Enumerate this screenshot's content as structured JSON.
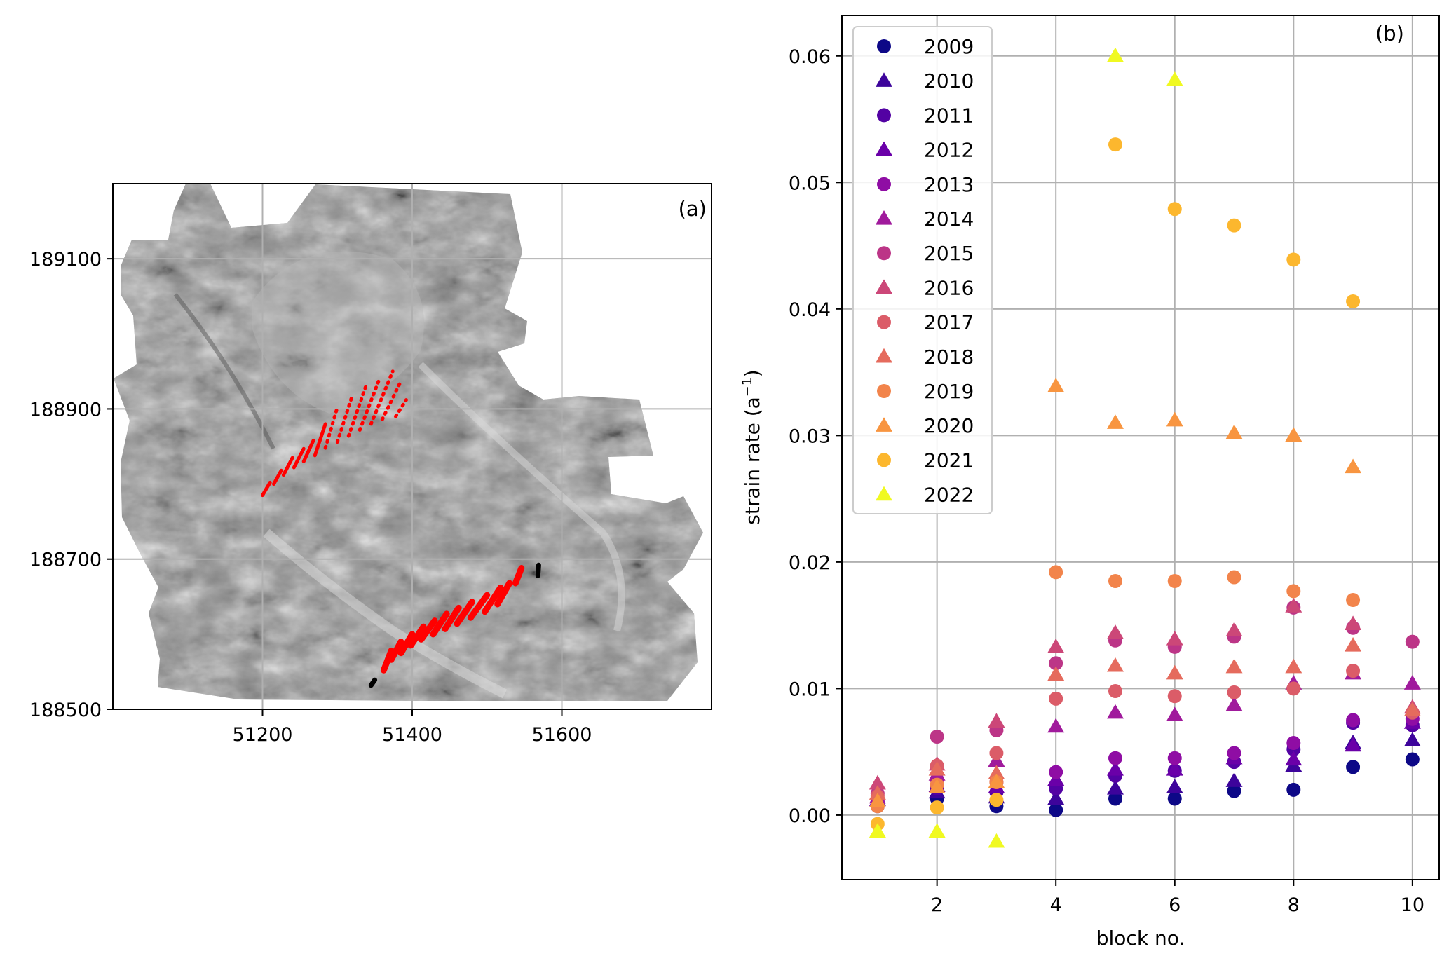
{
  "chart_data": [
    {
      "type": "scatter",
      "panel_label": "(a)",
      "xticks": [
        "51200",
        "51400",
        "51600"
      ],
      "yticks": [
        "188500",
        "188700",
        "188900",
        "189100"
      ],
      "xlim": [
        51000,
        51800
      ],
      "ylim": [
        188500,
        189200
      ],
      "grid": true,
      "background": "grayscale hillshade relief image",
      "profiles_red": [
        {
          "x0": 51200,
          "y0": 188785,
          "x1": 51210,
          "y1": 188802
        },
        {
          "x0": 51215,
          "y0": 188800,
          "x1": 51225,
          "y1": 188818
        },
        {
          "x0": 51228,
          "y0": 188812,
          "x1": 51240,
          "y1": 188835
        },
        {
          "x0": 51242,
          "y0": 188822,
          "x1": 51255,
          "y1": 188847
        },
        {
          "x0": 51255,
          "y0": 188830,
          "x1": 51268,
          "y1": 188858
        },
        {
          "x0": 51270,
          "y0": 188838,
          "x1": 51284,
          "y1": 188880
        },
        {
          "x0": 51284,
          "y0": 188848,
          "x1": 51300,
          "y1": 188902
        },
        {
          "x0": 51300,
          "y0": 188856,
          "x1": 51320,
          "y1": 188918
        },
        {
          "x0": 51315,
          "y0": 188864,
          "x1": 51338,
          "y1": 188930
        },
        {
          "x0": 51330,
          "y0": 188872,
          "x1": 51357,
          "y1": 188942
        },
        {
          "x0": 51345,
          "y0": 188880,
          "x1": 51374,
          "y1": 188950
        },
        {
          "x0": 51360,
          "y0": 188886,
          "x1": 51384,
          "y1": 188935
        },
        {
          "x0": 51378,
          "y0": 188890,
          "x1": 51392,
          "y1": 188912
        },
        {
          "x0": 51362,
          "y0": 188552,
          "x1": 51372,
          "y1": 188578
        },
        {
          "x0": 51372,
          "y0": 188566,
          "x1": 51385,
          "y1": 188590
        },
        {
          "x0": 51385,
          "y0": 188575,
          "x1": 51400,
          "y1": 188600
        },
        {
          "x0": 51398,
          "y0": 188585,
          "x1": 51415,
          "y1": 188610
        },
        {
          "x0": 51412,
          "y0": 188593,
          "x1": 51430,
          "y1": 188618
        },
        {
          "x0": 51428,
          "y0": 188600,
          "x1": 51446,
          "y1": 188627
        },
        {
          "x0": 51444,
          "y0": 188607,
          "x1": 51462,
          "y1": 188635
        },
        {
          "x0": 51460,
          "y0": 188614,
          "x1": 51480,
          "y1": 188643
        },
        {
          "x0": 51478,
          "y0": 188622,
          "x1": 51500,
          "y1": 188652
        },
        {
          "x0": 51497,
          "y0": 188630,
          "x1": 51518,
          "y1": 188662
        },
        {
          "x0": 51514,
          "y0": 188640,
          "x1": 51530,
          "y1": 188668
        },
        {
          "x0": 51538,
          "y0": 188668,
          "x1": 51546,
          "y1": 188688
        }
      ],
      "profiles_black": [
        {
          "x0": 51345,
          "y0": 188532,
          "x1": 51350,
          "y1": 188539
        },
        {
          "x0": 51568,
          "y0": 188678,
          "x1": 51569,
          "y1": 188692
        }
      ]
    },
    {
      "type": "scatter",
      "panel_label": "(b)",
      "xlabel": "block no.",
      "ylabel": "strain rate (a⁻¹)",
      "xlim": [
        0.4,
        10.45
      ],
      "ylim": [
        -0.0051,
        0.0632
      ],
      "xticks": [
        2,
        4,
        6,
        8,
        10
      ],
      "yticks": [
        0.0,
        0.01,
        0.02,
        0.03,
        0.04,
        0.05,
        0.06
      ],
      "ytick_labels": [
        "0.00",
        "0.01",
        "0.02",
        "0.03",
        "0.04",
        "0.05",
        "0.06"
      ],
      "grid": true,
      "legend_position": "upper left",
      "colormap": "plasma",
      "series": [
        {
          "name": "2009",
          "marker": "circle",
          "color": "#0d0887",
          "x": [
            1,
            2,
            3,
            4,
            5,
            6,
            7,
            8,
            9,
            10
          ],
          "values": [
            0.0007,
            0.0013,
            0.0007,
            0.0004,
            0.0013,
            0.0013,
            0.0019,
            0.002,
            0.0038,
            0.0044
          ]
        },
        {
          "name": "2010",
          "marker": "triangle",
          "color": "#3d049b",
          "x": [
            1,
            2,
            3,
            4,
            5,
            6,
            7,
            8,
            9,
            10
          ],
          "values": [
            0.0011,
            0.0018,
            0.0014,
            0.0013,
            0.0021,
            0.0022,
            0.0027,
            0.0039,
            0.0057,
            0.0059
          ]
        },
        {
          "name": "2011",
          "marker": "circle",
          "color": "#5302a3",
          "x": [
            1,
            2,
            3,
            4,
            5,
            6,
            7,
            8,
            9,
            10
          ],
          "values": [
            0.0011,
            0.0021,
            0.0018,
            0.0021,
            0.0031,
            0.0035,
            0.0042,
            0.0052,
            0.0073,
            0.0071
          ]
        },
        {
          "name": "2012",
          "marker": "triangle",
          "color": "#6a00a8",
          "x": [
            1,
            2,
            3,
            4,
            5,
            6,
            7,
            8,
            9,
            10
          ],
          "values": [
            0.0012,
            0.0023,
            0.0022,
            0.0028,
            0.0036,
            0.0036,
            0.0045,
            0.0044,
            0.0055,
            0.0073
          ]
        },
        {
          "name": "2013",
          "marker": "circle",
          "color": "#8f0da4",
          "x": [
            1,
            2,
            3,
            4,
            5,
            6,
            7,
            8,
            9,
            10
          ],
          "values": [
            0.0013,
            0.0028,
            0.0026,
            0.0034,
            0.0045,
            0.0045,
            0.0049,
            0.0057,
            0.0075,
            0.0076
          ]
        },
        {
          "name": "2014",
          "marker": "triangle",
          "color": "#a01a9c",
          "x": [
            1,
            2,
            3,
            4,
            5,
            6,
            7,
            8,
            9,
            10
          ],
          "values": [
            0.0014,
            0.0032,
            0.0043,
            0.007,
            0.0081,
            0.0079,
            0.0087,
            0.0104,
            0.0112,
            0.0104
          ]
        },
        {
          "name": "2015",
          "marker": "circle",
          "color": "#bc3587",
          "x": [
            1,
            2,
            3,
            4,
            5,
            6,
            7,
            8,
            9,
            10
          ],
          "values": [
            0.0017,
            0.0062,
            0.0067,
            0.012,
            0.0138,
            0.0133,
            0.0141,
            0.0164,
            0.0148,
            0.0137
          ]
        },
        {
          "name": "2016",
          "marker": "triangle",
          "color": "#cc4778",
          "x": [
            1,
            2,
            3,
            4,
            5,
            6,
            7,
            8,
            9,
            10
          ],
          "values": [
            0.0025,
            0.004,
            0.0074,
            0.0133,
            0.0144,
            0.0139,
            0.0146,
            0.0165,
            0.0151,
            0.0085
          ]
        },
        {
          "name": "2017",
          "marker": "circle",
          "color": "#db5c68",
          "x": [
            1,
            2,
            3,
            4,
            5,
            6,
            7,
            8,
            9,
            10
          ],
          "values": [
            0.0015,
            0.0039,
            0.0049,
            0.0092,
            0.0098,
            0.0094,
            0.0097,
            0.01,
            0.0114,
            0.0081
          ]
        },
        {
          "name": "2018",
          "marker": "triangle",
          "color": "#e56b5d",
          "x": [
            1,
            2,
            3,
            4,
            5,
            6,
            7,
            8,
            9,
            10
          ],
          "values": [
            0.0017,
            0.0036,
            0.0033,
            0.0111,
            0.0118,
            0.0112,
            0.0117,
            0.0117,
            0.0134,
            0.0083
          ]
        },
        {
          "name": "2019",
          "marker": "circle",
          "color": "#f2844b",
          "x": [
            1,
            2,
            3,
            4,
            5,
            6,
            7,
            8,
            9
          ],
          "values": [
            0.0007,
            0.0024,
            0.0026,
            0.0192,
            0.0185,
            0.0185,
            0.0188,
            0.0177,
            0.017
          ]
        },
        {
          "name": "2020",
          "marker": "triangle",
          "color": "#f89540",
          "x": [
            1,
            2,
            3,
            4,
            5,
            6,
            7,
            8,
            9
          ],
          "values": [
            0.0011,
            0.0022,
            0.0026,
            0.0339,
            0.031,
            0.0312,
            0.0302,
            0.03,
            0.0275
          ]
        },
        {
          "name": "2021",
          "marker": "circle",
          "color": "#fcb72e",
          "x": [
            1,
            2,
            3,
            5,
            6,
            7,
            8,
            9
          ],
          "values": [
            -0.0007,
            0.0006,
            0.0012,
            0.053,
            0.0479,
            0.0466,
            0.0439,
            0.0406
          ]
        },
        {
          "name": "2022",
          "marker": "triangle",
          "color": "#f0f921",
          "x": [
            1,
            2,
            3,
            5,
            6
          ],
          "values": [
            -0.0013,
            -0.0013,
            -0.0021,
            0.06,
            0.0581
          ]
        }
      ]
    }
  ]
}
